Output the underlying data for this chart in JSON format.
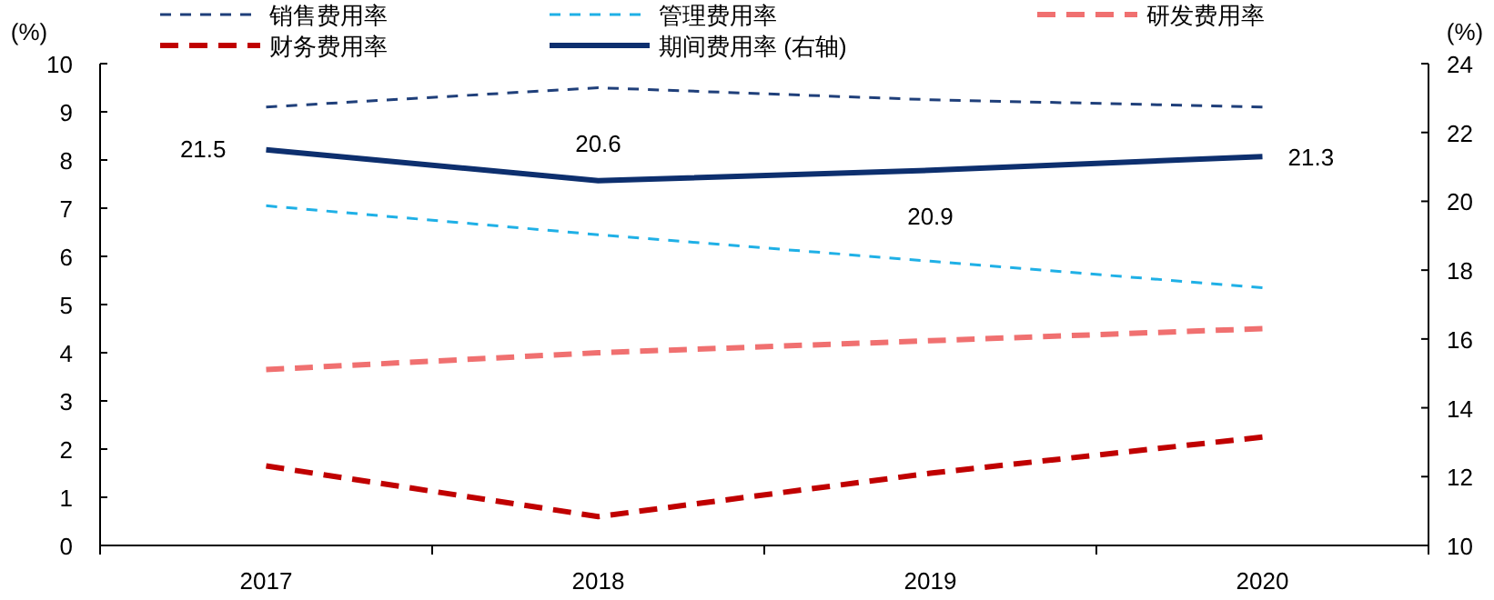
{
  "chart_data": {
    "type": "line",
    "categories": [
      "2017",
      "2018",
      "2019",
      "2020"
    ],
    "ylabel": "(%)",
    "y2label": "(%)",
    "ylim": [
      0,
      10
    ],
    "yticks": [
      0,
      1,
      2,
      3,
      4,
      5,
      6,
      7,
      8,
      9,
      10
    ],
    "y2lim": [
      10,
      24
    ],
    "y2ticks": [
      10,
      12,
      14,
      16,
      18,
      20,
      22,
      24
    ],
    "legend": "top",
    "grid": false,
    "marker": "none",
    "series": [
      {
        "name": "销售费用率",
        "color": "#1f3f7a",
        "line_style": "dashed",
        "values": [
          9.1,
          9.5,
          9.25,
          9.1
        ]
      },
      {
        "name": "管理费用率",
        "color": "#1fb0e6",
        "line_style": "dashed",
        "values": [
          7.05,
          6.45,
          5.9,
          5.35
        ]
      },
      {
        "name": "研发费用率",
        "color": "#f07070",
        "line_style": "dashed",
        "values": [
          3.65,
          4.0,
          4.25,
          4.5
        ]
      },
      {
        "name": "财务费用率",
        "color": "#c00000",
        "line_style": "dashed",
        "values": [
          1.65,
          0.6,
          1.5,
          2.25
        ]
      },
      {
        "name": "期间费用率 (右轴)",
        "color": "#0d2f6e",
        "line_style": "solid",
        "axis": "y2",
        "values": [
          21.5,
          20.6,
          20.9,
          21.3
        ],
        "value_labels": [
          "21.5",
          "20.6",
          "20.9",
          "21.3"
        ]
      }
    ]
  }
}
